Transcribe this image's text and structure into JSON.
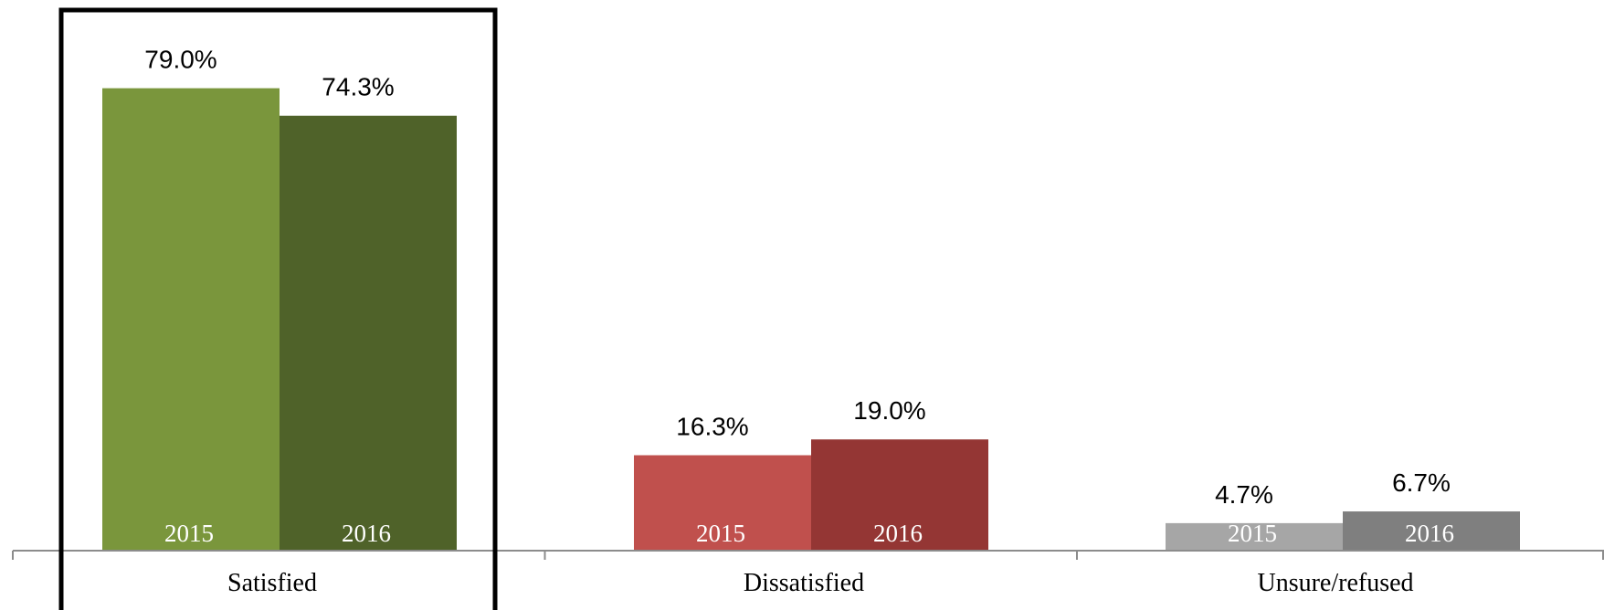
{
  "chart_data": {
    "type": "bar",
    "categories": [
      "Satisfied",
      "Dissatisfied",
      "Unsure/refused"
    ],
    "series": [
      {
        "name": "2015",
        "values": [
          79.0,
          16.3,
          4.7
        ]
      },
      {
        "name": "2016",
        "values": [
          74.3,
          19.0,
          6.7
        ]
      }
    ],
    "value_labels": [
      [
        "79.0%",
        "74.3%"
      ],
      [
        "16.3%",
        "19.0%"
      ],
      [
        "4.7%",
        "6.7%"
      ]
    ],
    "bar_labels": [
      "2015",
      "2016"
    ],
    "colors": [
      [
        "#7a963c",
        "#4f6229"
      ],
      [
        "#c0504d",
        "#943634"
      ],
      [
        "#a6a6a6",
        "#7f7f7f"
      ]
    ],
    "highlighted_category": "Satisfied",
    "title": "",
    "xlabel": "",
    "ylabel": "",
    "ylim": [
      0,
      80
    ],
    "grid": false,
    "legend": "none"
  }
}
